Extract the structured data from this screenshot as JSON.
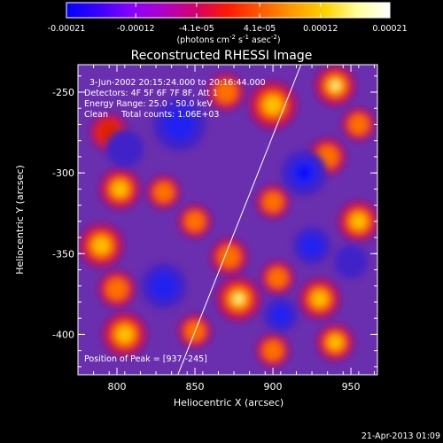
{
  "colorbar": {
    "ticks": [
      "-0.00021",
      "-0.00012",
      "-4.1e-05",
      "4.1e-05",
      "0.00012",
      "0.00021"
    ],
    "tick_values": [
      -0.00021,
      -0.00012,
      -4.1e-05,
      4.1e-05,
      0.00012,
      0.00021
    ],
    "range": [
      -0.00021,
      0.00021
    ],
    "unit_parts": {
      "a": "(photons cm",
      "b": "-2",
      "c": " s",
      "d": "-1",
      "e": " asec",
      "f": "-2",
      "g": ")"
    },
    "colors": [
      "#0000ff",
      "#3b00ff",
      "#8a00ff",
      "#b000c8",
      "#d4006a",
      "#ff1a00",
      "#ff5a00",
      "#ff9a00",
      "#ffd200",
      "#ffff9a",
      "#ffffff"
    ]
  },
  "chart_data": {
    "type": "heatmap",
    "title": "Reconstructed RHESSI Image",
    "xlabel": "Heliocentric X (arcsec)",
    "ylabel": "Heliocentric Y (arcsec)",
    "xlim": [
      775,
      967
    ],
    "ylim": [
      -425,
      -233
    ],
    "x_ticks": [
      800,
      850,
      900,
      950
    ],
    "y_ticks": [
      -250,
      -300,
      -350,
      -400
    ],
    "limb_line": [
      [
        839,
        -425
      ],
      [
        918,
        -233
      ]
    ],
    "annotations": {
      "time": "3-Jun-2002 20:15:24.000 to 20:16:44.000",
      "detectors": "Detectors: 4F 5F 6F 7F 8F, Att 1",
      "energy": "Energy Range: 25.0 - 50.0 keV",
      "clean": "Clean     Total counts: 1.06E+03",
      "peak": "Position of Peak = [937,-245]"
    },
    "blobs": [
      {
        "x": 940,
        "y": -246,
        "v": 1.0,
        "s": 11
      },
      {
        "x": 900,
        "y": -258,
        "v": 0.75,
        "s": 13
      },
      {
        "x": 870,
        "y": -250,
        "v": 0.55,
        "s": 10
      },
      {
        "x": 795,
        "y": -275,
        "v": 0.45,
        "s": 10
      },
      {
        "x": 802,
        "y": -310,
        "v": 0.7,
        "s": 11
      },
      {
        "x": 830,
        "y": -312,
        "v": 0.55,
        "s": 9
      },
      {
        "x": 790,
        "y": -345,
        "v": 0.85,
        "s": 12
      },
      {
        "x": 800,
        "y": -372,
        "v": 0.6,
        "s": 10
      },
      {
        "x": 805,
        "y": -400,
        "v": 0.75,
        "s": 12
      },
      {
        "x": 850,
        "y": -398,
        "v": 0.55,
        "s": 9
      },
      {
        "x": 878,
        "y": -378,
        "v": 0.9,
        "s": 12
      },
      {
        "x": 872,
        "y": -352,
        "v": 0.65,
        "s": 10
      },
      {
        "x": 903,
        "y": -365,
        "v": 0.55,
        "s": 9
      },
      {
        "x": 930,
        "y": -378,
        "v": 0.85,
        "s": 11
      },
      {
        "x": 940,
        "y": -405,
        "v": 0.7,
        "s": 10
      },
      {
        "x": 900,
        "y": -410,
        "v": 0.6,
        "s": 9
      },
      {
        "x": 955,
        "y": -330,
        "v": 0.8,
        "s": 11
      },
      {
        "x": 900,
        "y": -318,
        "v": 0.5,
        "s": 9
      },
      {
        "x": 935,
        "y": -290,
        "v": 0.6,
        "s": 10
      },
      {
        "x": 955,
        "y": -270,
        "v": 0.5,
        "s": 9
      },
      {
        "x": 850,
        "y": -330,
        "v": 0.5,
        "s": 9
      },
      {
        "x": 920,
        "y": -300,
        "v": -0.9,
        "s": 12
      },
      {
        "x": 905,
        "y": -388,
        "v": -0.8,
        "s": 9
      },
      {
        "x": 830,
        "y": -370,
        "v": -0.55,
        "s": 12
      },
      {
        "x": 840,
        "y": -270,
        "v": -0.6,
        "s": 14
      },
      {
        "x": 805,
        "y": -285,
        "v": -0.4,
        "s": 10
      },
      {
        "x": 925,
        "y": -345,
        "v": -0.5,
        "s": 10
      },
      {
        "x": 950,
        "y": -355,
        "v": -0.45,
        "s": 9
      }
    ]
  },
  "footer": {
    "date": "21-Apr-2013 01:09"
  }
}
